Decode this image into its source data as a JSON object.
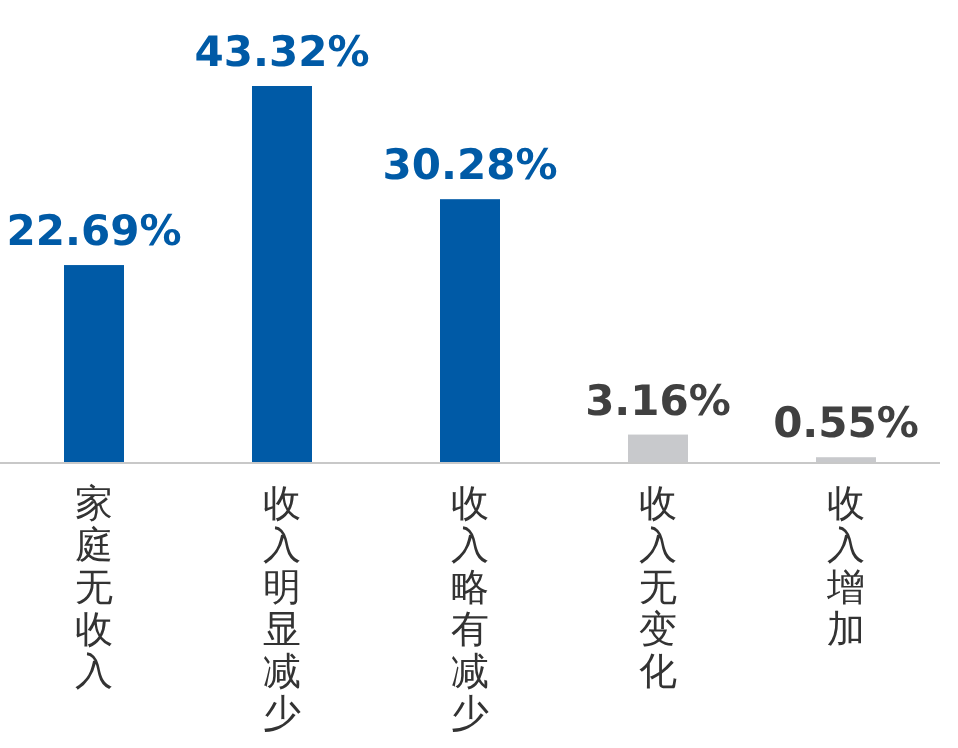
{
  "chart_data": {
    "type": "bar",
    "categories": [
      "家庭无收入",
      "收入明显减少",
      "收入略有减少",
      "收入无变化",
      "收入增加"
    ],
    "values": [
      22.69,
      43.32,
      30.28,
      3.16,
      0.55
    ],
    "value_labels": [
      "22.69%",
      "43.32%",
      "30.28%",
      "3.16%",
      "0.55%"
    ],
    "colors": [
      "#005aa6",
      "#005aa6",
      "#005aa6",
      "#c8c9cc",
      "#c8c9cc"
    ]
  }
}
